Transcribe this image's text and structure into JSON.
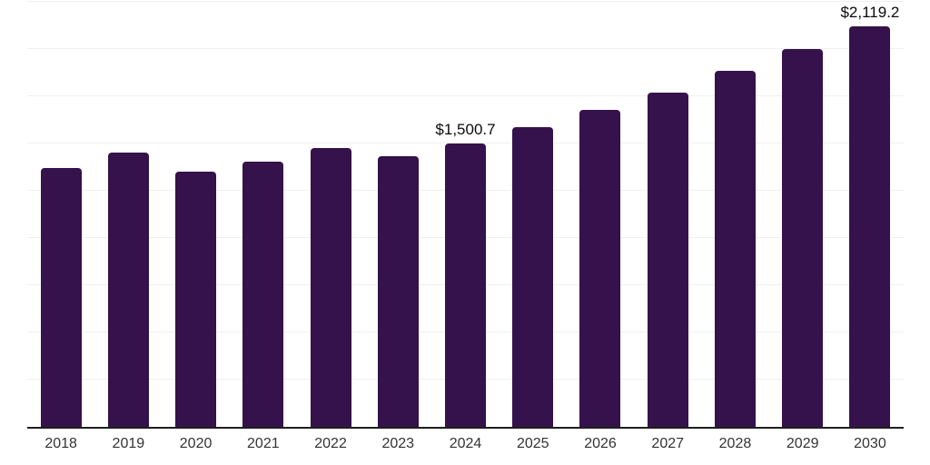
{
  "chart_data": {
    "type": "bar",
    "title": "",
    "xlabel": "",
    "ylabel": "",
    "categories": [
      "2018",
      "2019",
      "2020",
      "2021",
      "2022",
      "2023",
      "2024",
      "2025",
      "2026",
      "2027",
      "2028",
      "2029",
      "2030"
    ],
    "values": [
      1370,
      1450,
      1353,
      1404,
      1476,
      1433,
      1500.7,
      1587,
      1679,
      1770,
      1884,
      2000,
      2119.2
    ],
    "data_labels": [
      "",
      "",
      "",
      "",
      "",
      "",
      "$1,500.7",
      "",
      "",
      "",
      "",
      "",
      "$2,119.2"
    ],
    "ylim": [
      0,
      2250
    ],
    "gridline_interval": 250,
    "grid": "horizontal-only",
    "legend_position": "none",
    "colors": {
      "bar": "#35124B",
      "axis_line": "#1f1f1f",
      "gridline": "#f0f0f1",
      "tick_label": "#333333",
      "data_label": "#0b0b0b",
      "background": "#ffffff"
    }
  }
}
